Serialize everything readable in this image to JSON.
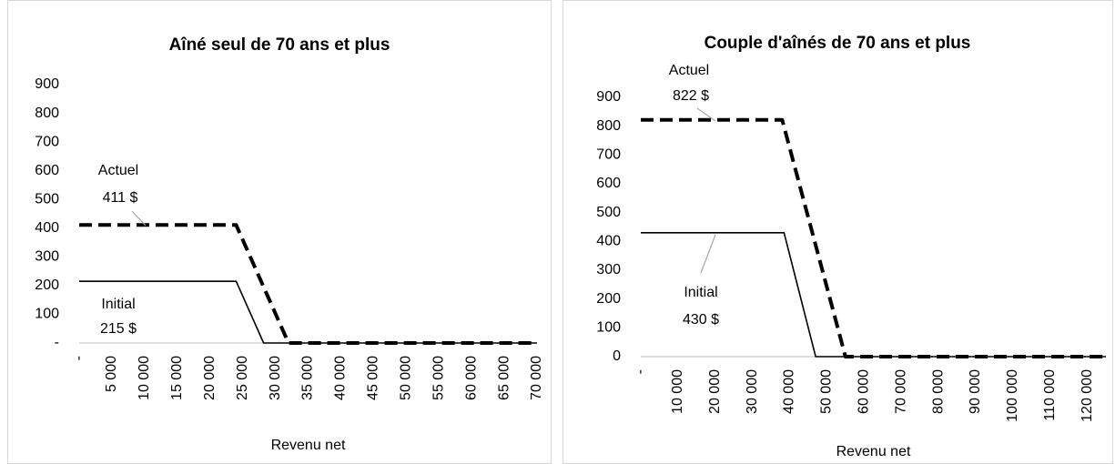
{
  "chart_data": [
    {
      "type": "line",
      "title": "Aîné seul de 70 ans et plus",
      "xlabel": "Revenu net",
      "xlim": [
        0,
        70000
      ],
      "xticks": [
        {
          "value": 0,
          "label": "-"
        },
        {
          "value": 5000,
          "label": "5 000"
        },
        {
          "value": 10000,
          "label": "10 000"
        },
        {
          "value": 15000,
          "label": "15 000"
        },
        {
          "value": 20000,
          "label": "20 000"
        },
        {
          "value": 25000,
          "label": "25 000"
        },
        {
          "value": 30000,
          "label": "30 000"
        },
        {
          "value": 35000,
          "label": "35 000"
        },
        {
          "value": 40000,
          "label": "40 000"
        },
        {
          "value": 45000,
          "label": "45 000"
        },
        {
          "value": 50000,
          "label": "50 000"
        },
        {
          "value": 55000,
          "label": "55 000"
        },
        {
          "value": 60000,
          "label": "60 000"
        },
        {
          "value": 65000,
          "label": "65 000"
        },
        {
          "value": 70000,
          "label": "70 000"
        }
      ],
      "ylim": [
        0,
        900
      ],
      "yticks": [
        {
          "value": 0,
          "label": "-"
        },
        100,
        200,
        300,
        400,
        500,
        600,
        700,
        800,
        900
      ],
      "series": [
        {
          "name": "Actuel",
          "color": "#000000",
          "dashed": true,
          "x": [
            0,
            24000,
            32000,
            70000
          ],
          "values": [
            411,
            411,
            0,
            0
          ],
          "annotation": "411  $"
        },
        {
          "name": "Initial",
          "color": "#000000",
          "dashed": false,
          "x": [
            0,
            24000,
            28200,
            70000
          ],
          "values": [
            215,
            215,
            0,
            0
          ],
          "annotation": "215 $"
        }
      ]
    },
    {
      "type": "line",
      "title": "Couple d'aînés de 70 ans et plus",
      "xlabel": "Revenu net",
      "xlim": [
        0,
        125000
      ],
      "xticks": [
        {
          "value": 0,
          "label": "-"
        },
        {
          "value": 10000,
          "label": "10 000"
        },
        {
          "value": 20000,
          "label": "20 000"
        },
        {
          "value": 30000,
          "label": "30 000"
        },
        {
          "value": 40000,
          "label": "40 000"
        },
        {
          "value": 50000,
          "label": "50 000"
        },
        {
          "value": 60000,
          "label": "60 000"
        },
        {
          "value": 70000,
          "label": "70 000"
        },
        {
          "value": 80000,
          "label": "80 000"
        },
        {
          "value": 90000,
          "label": "90 000"
        },
        {
          "value": 100000,
          "label": "100 000"
        },
        {
          "value": 110000,
          "label": "110 000"
        },
        {
          "value": 120000,
          "label": "120 000"
        }
      ],
      "ylim": [
        0,
        900
      ],
      "yticks": [
        0,
        100,
        200,
        300,
        400,
        500,
        600,
        700,
        800,
        900
      ],
      "series": [
        {
          "name": "Actuel",
          "color": "#000000",
          "dashed": true,
          "x": [
            0,
            38000,
            55000,
            125000
          ],
          "values": [
            822,
            822,
            0,
            0
          ],
          "annotation": "822  $"
        },
        {
          "name": "Initial",
          "color": "#000000",
          "dashed": false,
          "x": [
            0,
            38500,
            47000,
            125000
          ],
          "values": [
            430,
            430,
            0,
            0
          ],
          "annotation": "430 $"
        }
      ]
    }
  ]
}
